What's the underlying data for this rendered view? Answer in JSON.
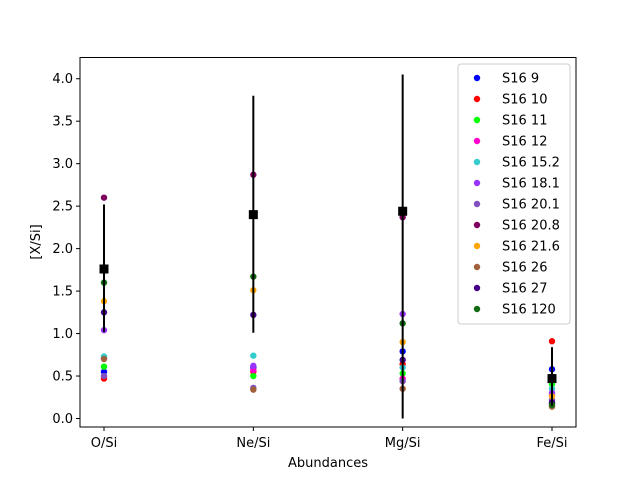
{
  "chart_data": {
    "type": "scatter",
    "xlabel": "Abundances",
    "ylabel": "[X/Si]",
    "categories": [
      "O/Si",
      "Ne/Si",
      "Mg/Si",
      "Fe/Si"
    ],
    "ylim": [
      -0.1,
      4.25
    ],
    "yticks": [
      "0.0",
      "0.5",
      "1.0",
      "1.5",
      "2.0",
      "2.5",
      "3.0",
      "3.5",
      "4.0"
    ],
    "ytick_values": [
      0.0,
      0.5,
      1.0,
      1.5,
      2.0,
      2.5,
      3.0,
      3.5,
      4.0
    ],
    "grid": false,
    "legend_position": "top-right",
    "series": [
      {
        "name": "S16 9",
        "color": "#0000ff",
        "values": [
          0.55,
          0.6,
          0.79,
          0.58
        ]
      },
      {
        "name": "S16 10",
        "color": "#ff0000",
        "values": [
          0.47,
          0.55,
          0.64,
          0.91
        ]
      },
      {
        "name": "S16 11",
        "color": "#00ff00",
        "values": [
          0.61,
          0.5,
          0.53,
          0.4
        ]
      },
      {
        "name": "S16 12",
        "color": "#ff00cc",
        "values": [
          0.71,
          0.57,
          0.47,
          0.28
        ]
      },
      {
        "name": "S16 15.2",
        "color": "#33cccc",
        "values": [
          0.73,
          0.74,
          0.6,
          0.35
        ]
      },
      {
        "name": "S16 18.1",
        "color": "#9933ff",
        "values": [
          1.04,
          0.62,
          1.23,
          0.3
        ]
      },
      {
        "name": "S16 20.1",
        "color": "#8050c0",
        "values": [
          0.5,
          0.36,
          0.44,
          0.22
        ]
      },
      {
        "name": "S16 20.8",
        "color": "#800060",
        "values": [
          2.6,
          2.87,
          2.37,
          0.18
        ]
      },
      {
        "name": "S16 21.6",
        "color": "#ffa500",
        "values": [
          1.38,
          1.51,
          0.9,
          0.26
        ]
      },
      {
        "name": "S16 26",
        "color": "#a0603c",
        "values": [
          0.7,
          0.34,
          0.35,
          0.14
        ]
      },
      {
        "name": "S16 27",
        "color": "#440088",
        "values": [
          1.25,
          1.22,
          0.69,
          0.19
        ]
      },
      {
        "name": "S16 120",
        "color": "#126b12",
        "values": [
          1.6,
          1.67,
          1.12,
          0.16
        ]
      }
    ],
    "mean": {
      "values": [
        1.76,
        2.4,
        2.44,
        0.47
      ],
      "err_low": [
        1.02,
        1.01,
        0.0,
        0.15
      ],
      "err_high": [
        2.52,
        3.8,
        4.05,
        0.84
      ]
    }
  }
}
